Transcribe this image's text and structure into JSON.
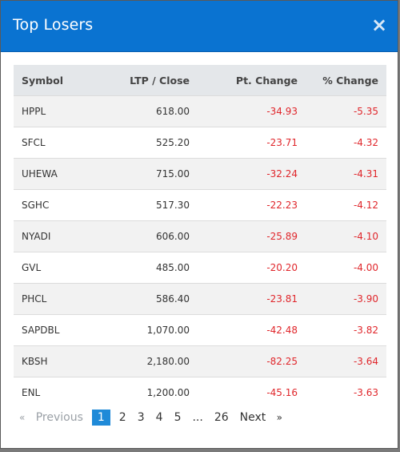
{
  "modal": {
    "title": "Top Losers",
    "close_label": "×"
  },
  "table": {
    "headers": [
      "Symbol",
      "LTP / Close",
      "Pt. Change",
      "% Change"
    ],
    "rows": [
      {
        "symbol": "HPPL",
        "ltp": "618.00",
        "pt_change": "-34.93",
        "pct_change": "-5.35"
      },
      {
        "symbol": "SFCL",
        "ltp": "525.20",
        "pt_change": "-23.71",
        "pct_change": "-4.32"
      },
      {
        "symbol": "UHEWA",
        "ltp": "715.00",
        "pt_change": "-32.24",
        "pct_change": "-4.31"
      },
      {
        "symbol": "SGHC",
        "ltp": "517.30",
        "pt_change": "-22.23",
        "pct_change": "-4.12"
      },
      {
        "symbol": "NYADI",
        "ltp": "606.00",
        "pt_change": "-25.89",
        "pct_change": "-4.10"
      },
      {
        "symbol": "GVL",
        "ltp": "485.00",
        "pt_change": "-20.20",
        "pct_change": "-4.00"
      },
      {
        "symbol": "PHCL",
        "ltp": "586.40",
        "pt_change": "-23.81",
        "pct_change": "-3.90"
      },
      {
        "symbol": "SAPDBL",
        "ltp": "1,070.00",
        "pt_change": "-42.48",
        "pct_change": "-3.82"
      },
      {
        "symbol": "KBSH",
        "ltp": "2,180.00",
        "pt_change": "-82.25",
        "pct_change": "-3.64"
      },
      {
        "symbol": "ENL",
        "ltp": "1,200.00",
        "pt_change": "-45.16",
        "pct_change": "-3.63"
      }
    ]
  },
  "pagination": {
    "prev_arrow": "«",
    "prev_label": "Previous",
    "pages": [
      "1",
      "2",
      "3",
      "4",
      "5",
      "...",
      "26"
    ],
    "active_page": "1",
    "next_label": "Next",
    "next_arrow": "»"
  },
  "colors": {
    "header_bg": "#0a73d1",
    "negative": "#e0262b",
    "active_page_bg": "#1f8ad8"
  }
}
